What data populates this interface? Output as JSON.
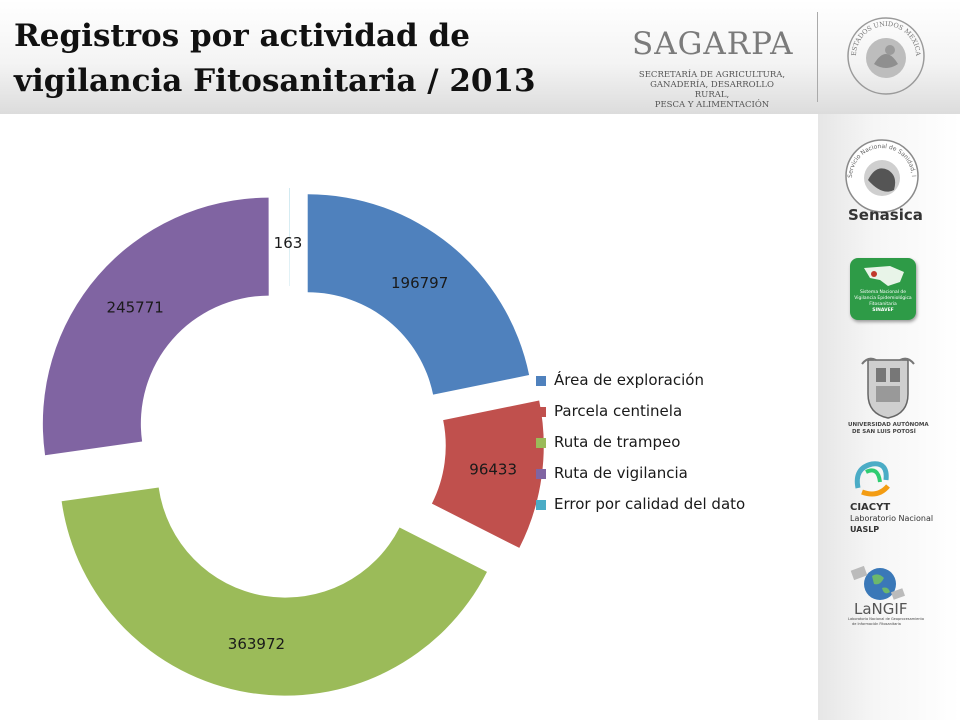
{
  "header": {
    "title_line1": "Registros por actividad de",
    "title_line2": "vigilancia Fitosanitaria / 2013",
    "sagarpa_name": "SAGARPA",
    "sagarpa_sub1": "SECRETARÍA DE AGRICULTURA,",
    "sagarpa_sub2": "GANADERÍA, DESARROLLO RURAL,",
    "sagarpa_sub3": "PESCA Y ALIMENTACIÓN",
    "seal_text": "ESTADOS UNIDOS MEXICANOS"
  },
  "sidebar": {
    "senasica_ring": "Servicio Nacional de Sanidad, Inocuidad y Calidad Agroalimentaria",
    "senasica_name": "Senasica",
    "sinavef_line1": "Sistema Nacional de",
    "sinavef_line2": "Vigilancia Epidemiológica",
    "sinavef_line3": "Fitosanitaria",
    "sinavef_line4": "SINAVEF",
    "uaslp_line1": "UNIVERSIDAD AUTÓNOMA",
    "uaslp_line2": "DE SAN LUIS POTOSÍ",
    "ciacyt_line1": "CIACYT",
    "ciacyt_line2": "Laboratorio Nacional",
    "ciacyt_line3": "UASLP",
    "langif_name": "LaNGIF",
    "langif_sub1": "Laboratorio Nacional de Geoprocesamiento",
    "langif_sub2": "de Información Fitosanitaria"
  },
  "colors": {
    "area_exploracion": "#4F81BD",
    "parcela_centinela": "#C0504D",
    "ruta_trampeo": "#9BBB59",
    "ruta_vigilancia": "#8064A2",
    "error_calidad": "#4BACC6"
  },
  "chart_data": {
    "type": "pie",
    "variant": "exploded-doughnut",
    "title": "",
    "legend_position": "right",
    "categories": [
      "Área de exploración",
      "Parcela centinela",
      "Ruta de trampeo",
      "Ruta de vigilancia",
      "Error por calidad del dato"
    ],
    "values": [
      196797,
      96433,
      363972,
      245771,
      163
    ],
    "data_labels": [
      "196797",
      "96433",
      "363972",
      "245771",
      "163"
    ],
    "colors": [
      "#4F81BD",
      "#C0504D",
      "#9BBB59",
      "#8064A2",
      "#4BACC6"
    ]
  }
}
